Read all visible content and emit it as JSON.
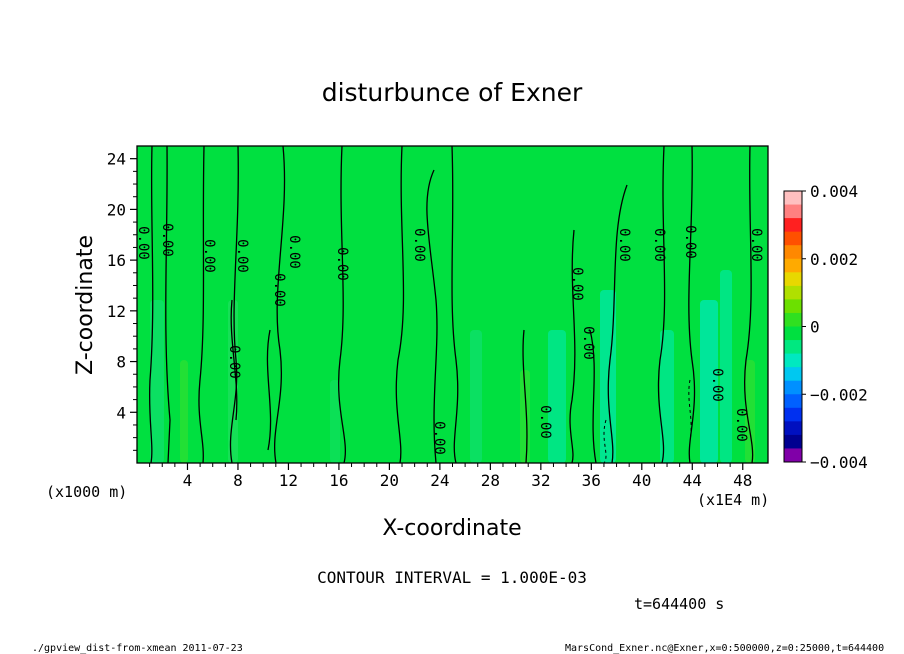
{
  "chart_data": {
    "type": "heatmap",
    "title": "disturbunce of Exner",
    "xlabel": "X-coordinate",
    "ylabel": "Z-coordinate",
    "x_unit_label": "(x1000 m)",
    "x_scale_label": "(x1E4 m)",
    "xlim": [
      0,
      500000
    ],
    "ylim": [
      0,
      25000
    ],
    "x_ticks": [
      "4",
      "8",
      "12",
      "16",
      "20",
      "24",
      "28",
      "32",
      "36",
      "40",
      "44",
      "48"
    ],
    "y_ticks": [
      "4",
      "8",
      "12",
      "16",
      "20",
      "24"
    ],
    "colorbar": {
      "vmin": -0.004,
      "vmax": 0.004,
      "labels": [
        "0.004",
        "0.002",
        "0",
        "−0.002",
        "−0.004"
      ],
      "colors": [
        "#ffc0c0",
        "#ff8080",
        "#ff2020",
        "#ff5000",
        "#ff8800",
        "#ffaa00",
        "#e8d800",
        "#b0e000",
        "#6ce000",
        "#30e020",
        "#00e040",
        "#00e880",
        "#00e8c0",
        "#00c8f0",
        "#0090ff",
        "#0060ff",
        "#0030f0",
        "#0010c0",
        "#000090",
        "#8000a8"
      ]
    },
    "contour_labels": [
      "0.00",
      "0.00",
      "0.00",
      "0.00",
      "0.00",
      "0.00",
      "0.00",
      "0.00",
      "0.00",
      "0.00",
      "0.00",
      "0.00",
      "0.00",
      "0.00",
      "0.00",
      "0.00",
      "0.00",
      "0.00",
      "0.00",
      "0.00"
    ],
    "contour_interval_text": "CONTOUR INTERVAL = 1.000E-03",
    "time_text": "t=644400 s",
    "footer_left": "./gpview_dist-from-xmean  2011-07-23",
    "footer_right": "MarsCond_Exner.nc@Exner,x=0:500000,z=0:25000,t=644400"
  }
}
